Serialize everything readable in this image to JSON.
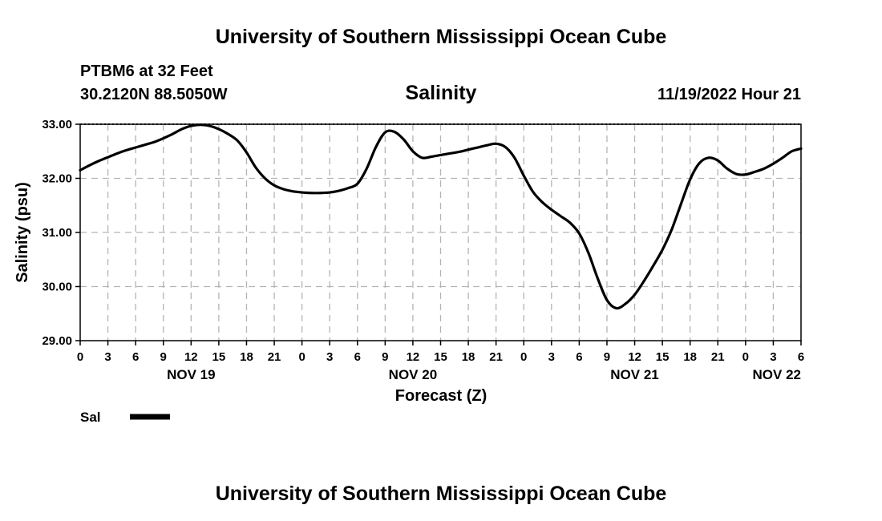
{
  "header": {
    "title": "University of Southern Mississippi Ocean Cube",
    "station": "PTBM6 at 32 Feet",
    "coords": "30.2120N  88.5050W",
    "datetime": "11/19/2022 Hour 21"
  },
  "footer": {
    "title": "University of Southern Mississippi Ocean Cube"
  },
  "legend": {
    "label": "Sal"
  },
  "colors": {
    "line": "#000000",
    "grid": "#b4b4b4",
    "background": "#ffffff"
  },
  "chart_data": {
    "type": "line",
    "title": "Salinity",
    "xlabel": "Forecast (Z)",
    "ylabel": "Salinity (psu)",
    "xlim": [
      0,
      78
    ],
    "ylim": [
      29.0,
      33.0
    ],
    "x_unit": "hours from NOV 19 00Z",
    "x_ticks": [
      {
        "x": 0,
        "label": "0"
      },
      {
        "x": 3,
        "label": "3"
      },
      {
        "x": 6,
        "label": "6"
      },
      {
        "x": 9,
        "label": "9"
      },
      {
        "x": 12,
        "label": "12"
      },
      {
        "x": 15,
        "label": "15"
      },
      {
        "x": 18,
        "label": "18"
      },
      {
        "x": 21,
        "label": "21"
      },
      {
        "x": 24,
        "label": "0"
      },
      {
        "x": 27,
        "label": "3"
      },
      {
        "x": 30,
        "label": "6"
      },
      {
        "x": 33,
        "label": "9"
      },
      {
        "x": 36,
        "label": "12"
      },
      {
        "x": 39,
        "label": "15"
      },
      {
        "x": 42,
        "label": "18"
      },
      {
        "x": 45,
        "label": "21"
      },
      {
        "x": 48,
        "label": "0"
      },
      {
        "x": 51,
        "label": "3"
      },
      {
        "x": 54,
        "label": "6"
      },
      {
        "x": 57,
        "label": "9"
      },
      {
        "x": 60,
        "label": "12"
      },
      {
        "x": 63,
        "label": "15"
      },
      {
        "x": 66,
        "label": "18"
      },
      {
        "x": 69,
        "label": "21"
      },
      {
        "x": 72,
        "label": "0"
      },
      {
        "x": 75,
        "label": "3"
      },
      {
        "x": 78,
        "label": "6"
      }
    ],
    "date_labels": [
      {
        "x": 12,
        "label": "NOV 19"
      },
      {
        "x": 36,
        "label": "NOV 20"
      },
      {
        "x": 60,
        "label": "NOV 21"
      },
      {
        "x": 78,
        "label": "NOV 22"
      }
    ],
    "y_ticks": [
      {
        "y": 29.0,
        "label": "29.00"
      },
      {
        "y": 30.0,
        "label": "30.00"
      },
      {
        "y": 31.0,
        "label": "31.00"
      },
      {
        "y": 32.0,
        "label": "32.00"
      },
      {
        "y": 33.0,
        "label": "33.00"
      }
    ],
    "series": [
      {
        "name": "Sal",
        "x": [
          0,
          1,
          2,
          3,
          4,
          5,
          6,
          7,
          8,
          9,
          10,
          11,
          12,
          13,
          14,
          15,
          16,
          17,
          18,
          19,
          20,
          21,
          22,
          23,
          24,
          25,
          26,
          27,
          28,
          29,
          30,
          31,
          32,
          33,
          34,
          35,
          36,
          37,
          38,
          39,
          40,
          41,
          42,
          43,
          44,
          45,
          46,
          47,
          48,
          49,
          50,
          51,
          52,
          53,
          54,
          55,
          56,
          57,
          58,
          59,
          60,
          61,
          62,
          63,
          64,
          65,
          66,
          67,
          68,
          69,
          70,
          71,
          72,
          73,
          74,
          75,
          76,
          77,
          78
        ],
        "values": [
          32.15,
          32.24,
          32.32,
          32.39,
          32.46,
          32.52,
          32.57,
          32.62,
          32.67,
          32.74,
          32.82,
          32.91,
          32.97,
          32.99,
          32.97,
          32.91,
          32.82,
          32.7,
          32.48,
          32.2,
          32.0,
          31.87,
          31.8,
          31.76,
          31.74,
          31.73,
          31.73,
          31.74,
          31.77,
          31.82,
          31.9,
          32.18,
          32.58,
          32.85,
          32.86,
          32.72,
          32.5,
          32.38,
          32.4,
          32.43,
          32.46,
          32.49,
          32.53,
          32.57,
          32.61,
          32.64,
          32.58,
          32.38,
          32.05,
          31.75,
          31.56,
          31.42,
          31.3,
          31.18,
          30.98,
          30.62,
          30.15,
          29.75,
          29.6,
          29.68,
          29.85,
          30.1,
          30.38,
          30.68,
          31.05,
          31.52,
          31.98,
          32.28,
          32.38,
          32.33,
          32.18,
          32.08,
          32.07,
          32.12,
          32.18,
          32.27,
          32.38,
          32.5,
          32.55
        ]
      }
    ]
  }
}
